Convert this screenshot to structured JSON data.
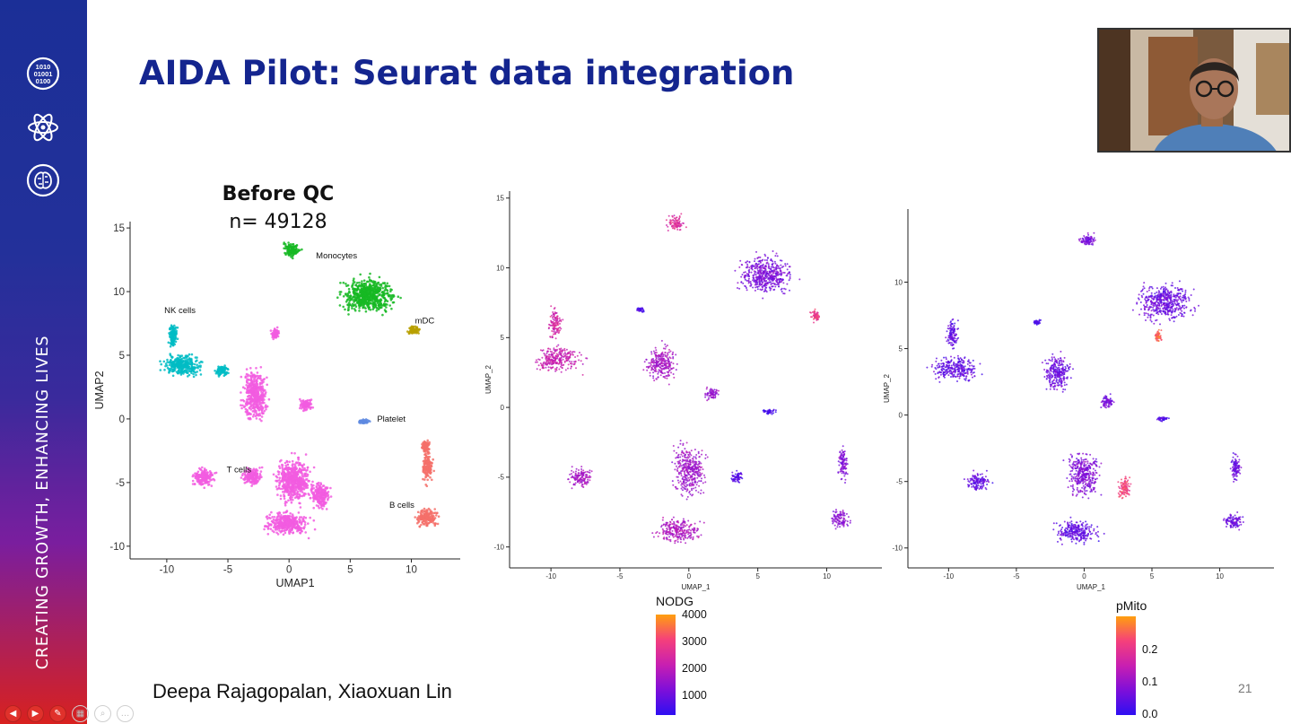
{
  "sidebar": {
    "tagline": "CREATING GROWTH, ENHANCING LIVES",
    "icons": [
      "binary-data-icon",
      "atom-icon",
      "brain-circuit-icon"
    ]
  },
  "slide": {
    "title": "AIDA Pilot: Seurat data integration",
    "authors": "Deepa Rajagopalan, Xiaoxuan Lin",
    "number": "21"
  },
  "webcam": {
    "label": "presenter-video"
  },
  "colors": {
    "title": "#14258f",
    "sidebar_top": "#1b2f97",
    "sidebar_bottom": "#d8211f",
    "nk_cells": "#00bcc4",
    "monocytes": "#16b823",
    "mdc": "#b8a000",
    "platelet": "#5e8ae0",
    "t_cells": "#f25ce0",
    "b_cells": "#f4706a",
    "gradient_low": "#2e0ff2",
    "gradient_high": "#ff9f0f"
  },
  "chart_data": [
    {
      "type": "scatter",
      "title": "Before QC",
      "subtitle": "n= 49128",
      "xlabel": "UMAP1",
      "ylabel": "UMAP2",
      "xlim": [
        -13,
        14
      ],
      "ylim": [
        -11,
        15.5
      ],
      "xticks": [
        "-10",
        "-5",
        "0",
        "5",
        "10"
      ],
      "xtick_values": [
        -10,
        -5,
        0,
        5,
        10
      ],
      "yticks": [
        "-10",
        "-5",
        "0",
        "5",
        "10",
        "15"
      ],
      "ytick_values": [
        -10,
        -5,
        0,
        5,
        10,
        15
      ],
      "grid": false,
      "series": [
        {
          "name": "NK cells",
          "color": "#00bcc4",
          "label_at": [
            -10.2,
            8.3
          ],
          "clusters": [
            [
              -8.7,
              4.2,
              1.8,
              0.9
            ],
            [
              -9.5,
              6.5,
              0.4,
              1.1
            ],
            [
              -5.5,
              3.8,
              0.6,
              0.5
            ]
          ]
        },
        {
          "name": "Monocytes",
          "color": "#16b823",
          "label_at": [
            2.2,
            12.6
          ],
          "clusters": [
            [
              6.5,
              9.7,
              2.4,
              1.5
            ],
            [
              0.2,
              13.3,
              0.8,
              0.7
            ]
          ]
        },
        {
          "name": "mDC",
          "color": "#b8a000",
          "label_at": [
            10.3,
            7.5
          ],
          "clusters": [
            [
              10.2,
              7.0,
              0.6,
              0.4
            ]
          ]
        },
        {
          "name": "Platelet",
          "color": "#5e8ae0",
          "label_at": [
            7.2,
            -0.2
          ],
          "clusters": [
            [
              6.1,
              -0.2,
              0.5,
              0.2
            ]
          ]
        },
        {
          "name": "T cells",
          "color": "#f25ce0",
          "label_at": [
            -5.1,
            -4.2
          ],
          "clusters": [
            [
              -0.2,
              -8.2,
              2.0,
              1.0
            ],
            [
              0.4,
              -4.8,
              1.6,
              2.0
            ],
            [
              -2.8,
              1.9,
              1.1,
              2.2
            ],
            [
              -3.0,
              -4.5,
              1.0,
              0.8
            ],
            [
              -7.0,
              -4.6,
              1.0,
              0.8
            ],
            [
              1.4,
              1.1,
              0.6,
              0.5
            ],
            [
              -1.1,
              6.7,
              0.4,
              0.5
            ],
            [
              2.6,
              -6.0,
              0.9,
              1.2
            ]
          ]
        },
        {
          "name": "B cells",
          "color": "#f4706a",
          "label_at": [
            8.2,
            -7.0
          ],
          "clusters": [
            [
              11.3,
              -7.7,
              1.0,
              0.8
            ],
            [
              11.3,
              -3.8,
              0.5,
              1.4
            ],
            [
              11.2,
              -2.2,
              0.4,
              0.6
            ]
          ]
        }
      ]
    },
    {
      "type": "scatter",
      "xlabel": "UMAP_1",
      "ylabel": "UMAP_2",
      "color_by": "NODG",
      "xlim": [
        -13,
        14
      ],
      "ylim": [
        -11.5,
        15.5
      ],
      "xticks": [
        "-10",
        "-5",
        "0",
        "5",
        "10"
      ],
      "xtick_values": [
        -10,
        -5,
        0,
        5,
        10
      ],
      "yticks": [
        "-10",
        "-5",
        "0",
        "5",
        "10",
        "15"
      ],
      "ytick_values": [
        -10,
        -5,
        0,
        5,
        10,
        15
      ],
      "grid": false,
      "legend": {
        "title": "NODG",
        "ticks": [
          "1000",
          "2000",
          "3000",
          "4000"
        ],
        "range": [
          400,
          4000
        ],
        "position": "bottom"
      },
      "clusters": [
        [
          -9.5,
          3.5,
          2.0,
          1.0,
          2200
        ],
        [
          -9.7,
          6.0,
          0.5,
          1.3,
          2400
        ],
        [
          -2.0,
          3.2,
          1.2,
          1.5,
          1800
        ],
        [
          -0.8,
          -8.8,
          1.8,
          1.0,
          1900
        ],
        [
          0.0,
          -4.5,
          1.3,
          2.0,
          1700
        ],
        [
          1.7,
          1.0,
          0.6,
          0.5,
          1600
        ],
        [
          -7.8,
          -5.0,
          1.0,
          0.8,
          1800
        ],
        [
          5.5,
          9.5,
          2.3,
          1.6,
          1300
        ],
        [
          -1.0,
          13.2,
          0.7,
          0.6,
          2600
        ],
        [
          -3.5,
          7.0,
          0.3,
          0.2,
          800
        ],
        [
          5.8,
          -0.3,
          0.5,
          0.2,
          700
        ],
        [
          3.5,
          -5.0,
          0.6,
          0.5,
          900
        ],
        [
          11.0,
          -8.0,
          0.8,
          0.7,
          1500
        ],
        [
          11.2,
          -4.0,
          0.4,
          1.3,
          1400
        ],
        [
          9.2,
          6.5,
          0.4,
          0.5,
          2900
        ]
      ]
    },
    {
      "type": "scatter",
      "xlabel": "UMAP_1",
      "ylabel": "UMAP_2",
      "color_by": "pMito",
      "xlim": [
        -13,
        14
      ],
      "ylim": [
        -11.5,
        15.5
      ],
      "xticks": [
        "-10",
        "-5",
        "0",
        "5",
        "10"
      ],
      "xtick_values": [
        -10,
        -5,
        0,
        5,
        10
      ],
      "yticks": [
        "-10",
        "-5",
        "0",
        "5",
        "10"
      ],
      "ytick_values": [
        -10,
        -5,
        0,
        5,
        10
      ],
      "grid": false,
      "legend": {
        "title": "pMito",
        "ticks": [
          "0.0",
          "0.1",
          "0.2"
        ],
        "range": [
          0.0,
          0.3
        ],
        "position": "bottom"
      },
      "clusters": [
        [
          -9.5,
          3.5,
          2.0,
          1.0,
          0.05
        ],
        [
          -9.7,
          6.0,
          0.5,
          1.3,
          0.05
        ],
        [
          -2.0,
          3.2,
          1.2,
          1.5,
          0.06
        ],
        [
          -0.5,
          -8.8,
          1.8,
          1.0,
          0.05
        ],
        [
          0.0,
          -4.5,
          1.3,
          2.0,
          0.08
        ],
        [
          1.7,
          1.0,
          0.6,
          0.5,
          0.07
        ],
        [
          -7.8,
          -5.0,
          1.0,
          0.8,
          0.05
        ],
        [
          6.0,
          8.5,
          2.3,
          1.6,
          0.06
        ],
        [
          0.3,
          13.2,
          0.7,
          0.6,
          0.07
        ],
        [
          -3.5,
          7.0,
          0.3,
          0.2,
          0.03
        ],
        [
          5.8,
          -0.3,
          0.5,
          0.2,
          0.03
        ],
        [
          3.0,
          -5.5,
          0.5,
          1.0,
          0.22
        ],
        [
          11.0,
          -8.0,
          0.8,
          0.7,
          0.06
        ],
        [
          11.2,
          -4.0,
          0.4,
          1.3,
          0.06
        ],
        [
          5.5,
          6.0,
          0.3,
          0.5,
          0.25
        ]
      ]
    }
  ],
  "controls": [
    {
      "name": "previous-slide-icon",
      "glyph": "◀"
    },
    {
      "name": "next-slide-icon",
      "glyph": "▶"
    },
    {
      "name": "pen-icon",
      "glyph": "✎"
    },
    {
      "name": "slides-grid-icon",
      "glyph": "▦"
    },
    {
      "name": "zoom-icon",
      "glyph": "⌕"
    },
    {
      "name": "more-options-icon",
      "glyph": "…"
    }
  ]
}
